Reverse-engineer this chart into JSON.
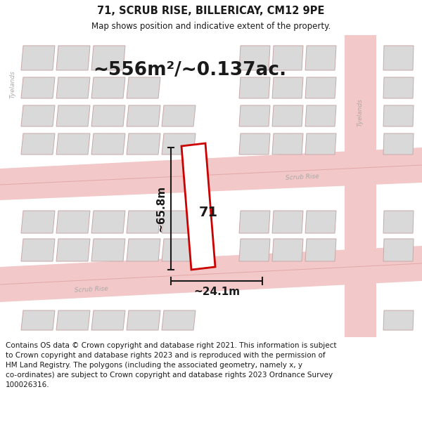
{
  "title_line1": "71, SCRUB RISE, BILLERICAY, CM12 9PE",
  "title_line2": "Map shows position and indicative extent of the property.",
  "area_text": "~556m²/~0.137ac.",
  "dim_height": "~65.8m",
  "dim_width": "~24.1m",
  "label_71": "71",
  "footer_text": "Contains OS data © Crown copyright and database right 2021. This information is subject to Crown copyright and database rights 2023 and is reproduced with the permission of HM Land Registry. The polygons (including the associated geometry, namely x, y co-ordinates) are subject to Crown copyright and database rights 2023 Ordnance Survey 100026316.",
  "bg_color": "#f7f2f2",
  "map_bg_color": "#ffffff",
  "road_color": "#f2c8c8",
  "building_color": "#d9d9d9",
  "building_outline": "#c8a8a8",
  "property_color": "#cc0000",
  "dim_line_color": "#1a1a1a",
  "text_color": "#1a1a1a",
  "street_text_color": "#aaaaaa",
  "header_bg": "#ffffff",
  "footer_bg": "#ffffff"
}
